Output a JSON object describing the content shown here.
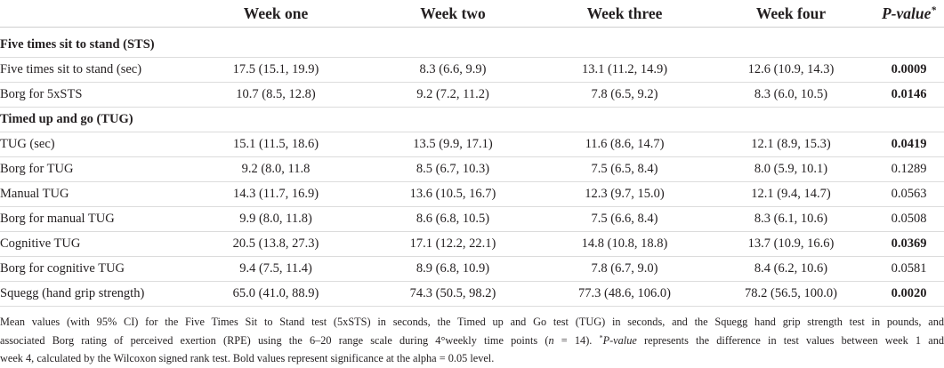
{
  "table": {
    "columns": [
      "Week one",
      "Week two",
      "Week three",
      "Week four"
    ],
    "pvalue_header": {
      "label": "P-value",
      "marker": "*"
    },
    "sections": [
      {
        "title": "Five times sit to stand (STS)",
        "rows": [
          {
            "label": "Five times sit to stand (sec)",
            "week_one": "17.5 (15.1, 19.9)",
            "week_two": "8.3 (6.6, 9.9)",
            "week_three": "13.1 (11.2, 14.9)",
            "week_four": "12.6 (10.9, 14.3)",
            "p_value": "0.0009",
            "significant": true
          },
          {
            "label": "Borg for 5xSTS",
            "week_one": "10.7 (8.5, 12.8)",
            "week_two": "9.2 (7.2, 11.2)",
            "week_three": "7.8 (6.5, 9.2)",
            "week_four": "8.3 (6.0, 10.5)",
            "p_value": "0.0146",
            "significant": true
          }
        ]
      },
      {
        "title": "Timed up and go (TUG)",
        "rows": [
          {
            "label": "TUG (sec)",
            "week_one": "15.1 (11.5, 18.6)",
            "week_two": "13.5 (9.9, 17.1)",
            "week_three": "11.6 (8.6, 14.7)",
            "week_four": "12.1 (8.9, 15.3)",
            "p_value": "0.0419",
            "significant": true
          },
          {
            "label": "Borg for TUG",
            "week_one": "9.2 (8.0, 11.8",
            "week_two": "8.5 (6.7, 10.3)",
            "week_three": "7.5 (6.5, 8.4)",
            "week_four": "8.0 (5.9, 10.1)",
            "p_value": "0.1289",
            "significant": false
          },
          {
            "label": "Manual TUG",
            "week_one": "14.3 (11.7, 16.9)",
            "week_two": "13.6 (10.5, 16.7)",
            "week_three": "12.3 (9.7, 15.0)",
            "week_four": "12.1 (9.4, 14.7)",
            "p_value": "0.0563",
            "significant": false
          },
          {
            "label": "Borg for manual TUG",
            "week_one": "9.9 (8.0, 11.8)",
            "week_two": "8.6 (6.8, 10.5)",
            "week_three": "7.5 (6.6, 8.4)",
            "week_four": "8.3 (6.1, 10.6)",
            "p_value": "0.0508",
            "significant": false
          },
          {
            "label": "Cognitive TUG",
            "week_one": "20.5 (13.8, 27.3)",
            "week_two": "17.1 (12.2, 22.1)",
            "week_three": "14.8 (10.8, 18.8)",
            "week_four": "13.7 (10.9, 16.6)",
            "p_value": "0.0369",
            "significant": true
          },
          {
            "label": "Borg for cognitive TUG",
            "week_one": "9.4 (7.5, 11.4)",
            "week_two": "8.9 (6.8, 10.9)",
            "week_three": "7.8 (6.7, 9.0)",
            "week_four": "8.4 (6.2, 10.6)",
            "p_value": "0.0581",
            "significant": false
          },
          {
            "label": "Squegg (hand grip strength)",
            "week_one": "65.0 (41.0, 88.9)",
            "week_two": "74.3 (50.5, 98.2)",
            "week_three": "77.3 (48.6, 106.0)",
            "week_four": "78.2 (56.5, 100.0)",
            "p_value": "0.0020",
            "significant": true
          }
        ]
      }
    ]
  },
  "footnote": {
    "segments": [
      "Mean values (with 95% CI) for the Five Times Sit to Stand test (5xSTS) in seconds, the Timed up and Go test (TUG) in seconds, and the Squegg hand grip strength test in pounds, and",
      "associated Borg rating of perceived exertion (RPE) using the 6–20 range scale during 4°weekly time points (",
      "n",
      " = 14). ",
      "*",
      "P-value",
      " represents the difference in test values between week 1 and",
      "week 4, calculated by the Wilcoxon signed rank test. Bold values represent significance at the alpha = 0.05 level."
    ]
  }
}
